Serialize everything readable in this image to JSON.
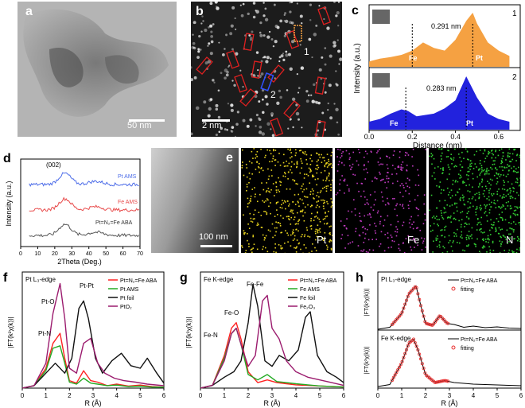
{
  "panels": {
    "a": {
      "label": "a",
      "scale_bar": "50 nm"
    },
    "b": {
      "label": "b",
      "scale_bar": "2 nm",
      "site1": "1",
      "site2": "2"
    },
    "c": {
      "label": "c",
      "ylabel": "Intensity (a.u.)",
      "xlabel": "Distance (nm)",
      "top": {
        "id": "1",
        "dist": "0.291 nm",
        "left_label": "Fe",
        "right_label": "Pt",
        "color": "#F5A142"
      },
      "bottom": {
        "id": "2",
        "dist": "0.283 nm",
        "left_label": "Fe",
        "right_label": "Pt",
        "color": "#2222DD"
      }
    },
    "d": {
      "label": "d",
      "ylabel": "Intensity (a.u.)",
      "xlabel": "2Theta (Deg.)",
      "peak_label": "(002)",
      "series_labels": [
        "Pt AMS",
        "Fe AMS",
        "Pt=N₂=Fe ABA"
      ]
    },
    "e": {
      "label": "e",
      "scale_bar": "100 nm",
      "maps": [
        "Pt",
        "Fe",
        "N"
      ],
      "map_colors": [
        "#E6D21E",
        "#C43CC4",
        "#33CC33"
      ]
    },
    "f": {
      "label": "f",
      "edge": "Pt L₃-edge",
      "ylabel": "|FT(k²χ(k))|",
      "xlabel": "R (Å)",
      "legend": [
        "Pt=N₂=Fe ABA",
        "Pt AMS",
        "Pt foil",
        "PtO₂"
      ],
      "annotations": [
        "Pt-Pt",
        "Pt-O",
        "Pt-N"
      ]
    },
    "g": {
      "label": "g",
      "edge": "Fe K-edge",
      "ylabel": "|FT(k³χ(k))|",
      "xlabel": "R (Å)",
      "legend": [
        "Pt=N₂=Fe ABA",
        "Fe AMS",
        "Fe foil",
        "Fe₂O₃"
      ],
      "annotations": [
        "Fe-Fe",
        "Fe-O",
        "Fe-N"
      ]
    },
    "h": {
      "label": "h",
      "xlabel": "R (Å)",
      "top": {
        "edge": "Pt L₃-edge",
        "ylabel": "|FT(k²χ(k))|",
        "legend": [
          "Pt=N₂=Fe ABA",
          "fitting"
        ]
      },
      "bottom": {
        "edge": "Fe K-edge",
        "ylabel": "|FT(k³χ(k))|",
        "legend": [
          "Pt=N₂=Fe ABA",
          "fitting"
        ]
      }
    }
  },
  "chart_data": [
    {
      "panel": "c",
      "type": "area",
      "series": [
        {
          "name": "1",
          "x": [
            0,
            0.05,
            0.1,
            0.15,
            0.2,
            0.25,
            0.3,
            0.35,
            0.4,
            0.45,
            0.48,
            0.5,
            0.55,
            0.6,
            0.65
          ],
          "y": [
            0.1,
            0.15,
            0.18,
            0.22,
            0.3,
            0.45,
            0.35,
            0.3,
            0.5,
            0.85,
            1.0,
            0.8,
            0.45,
            0.3,
            0.2
          ]
        },
        {
          "name": "2",
          "x": [
            0,
            0.05,
            0.1,
            0.15,
            0.18,
            0.22,
            0.3,
            0.35,
            0.4,
            0.45,
            0.5,
            0.55,
            0.6,
            0.65
          ],
          "y": [
            0.15,
            0.2,
            0.3,
            0.38,
            0.35,
            0.25,
            0.3,
            0.4,
            0.55,
            1.0,
            0.6,
            0.3,
            0.2,
            0.15
          ]
        }
      ],
      "xlim": [
        0,
        0.7
      ],
      "xticks": [
        0.0,
        0.2,
        0.4,
        0.6
      ]
    },
    {
      "panel": "d",
      "type": "line",
      "xlim": [
        0,
        70
      ],
      "xticks": [
        0,
        10,
        20,
        30,
        40,
        50,
        60,
        70
      ],
      "series": [
        {
          "name": "Pt AMS",
          "color": "#4B6BE8",
          "offset": 2.0
        },
        {
          "name": "Fe AMS",
          "color": "#E84B4B",
          "offset": 1.0
        },
        {
          "name": "Pt=N₂=Fe ABA",
          "color": "#555555",
          "offset": 0.0
        }
      ],
      "peak_x": 26
    },
    {
      "panel": "f",
      "type": "line",
      "xlim": [
        0,
        6
      ],
      "xticks": [
        0,
        1,
        2,
        3,
        4,
        5,
        6
      ],
      "series": [
        {
          "name": "Pt=N₂=Fe ABA",
          "color": "#FF2222",
          "x": [
            0,
            0.5,
            1.0,
            1.3,
            1.6,
            1.8,
            2.0,
            2.3,
            2.6,
            2.9,
            3.2,
            3.6,
            4.0,
            4.5,
            5.0,
            5.5,
            6.0
          ],
          "y": [
            0,
            0.05,
            0.4,
            0.9,
            1.1,
            0.6,
            0.15,
            0.1,
            0.35,
            0.15,
            0.12,
            0.05,
            0.08,
            0.04,
            0.06,
            0.03,
            0.02
          ]
        },
        {
          "name": "Pt AMS",
          "color": "#22AA22",
          "x": [
            0,
            0.5,
            1.0,
            1.3,
            1.6,
            1.8,
            2.0,
            2.3,
            2.6,
            2.9,
            3.2,
            3.6,
            4.0,
            4.5,
            5.0,
            5.5,
            6.0
          ],
          "y": [
            0,
            0.05,
            0.35,
            0.8,
            0.85,
            0.5,
            0.12,
            0.08,
            0.2,
            0.1,
            0.08,
            0.05,
            0.06,
            0.03,
            0.04,
            0.02,
            0.02
          ]
        },
        {
          "name": "Pt foil",
          "color": "#111111",
          "x": [
            0,
            0.5,
            1.0,
            1.4,
            1.8,
            2.1,
            2.4,
            2.6,
            2.8,
            3.1,
            3.4,
            3.8,
            4.2,
            4.6,
            5.0,
            5.3,
            5.7,
            6.0
          ],
          "y": [
            0,
            0.05,
            0.3,
            0.5,
            0.3,
            0.6,
            1.6,
            1.75,
            1.4,
            0.6,
            0.3,
            0.55,
            0.7,
            0.45,
            0.4,
            0.6,
            0.3,
            0.1
          ]
        },
        {
          "name": "PtO₂",
          "color": "#9B1B6E",
          "x": [
            0,
            0.5,
            1.0,
            1.3,
            1.6,
            1.8,
            2.0,
            2.3,
            2.6,
            2.9,
            3.2,
            3.5,
            3.9,
            4.3,
            4.8,
            5.3,
            6.0
          ],
          "y": [
            0,
            0.05,
            0.5,
            1.5,
            2.1,
            1.4,
            0.4,
            0.3,
            0.9,
            1.0,
            0.5,
            0.3,
            0.2,
            0.15,
            0.12,
            0.08,
            0.05
          ]
        }
      ]
    },
    {
      "panel": "g",
      "type": "line",
      "xlim": [
        0,
        6
      ],
      "xticks": [
        0,
        1,
        2,
        3,
        4,
        5,
        6
      ],
      "series": [
        {
          "name": "Pt=N₂=Fe ABA",
          "color": "#FF2222",
          "x": [
            0,
            0.5,
            1.0,
            1.3,
            1.5,
            1.7,
            2.0,
            2.4,
            2.8,
            3.2,
            3.6,
            4.0,
            4.5,
            5.0,
            5.5,
            6.0
          ],
          "y": [
            0,
            0.05,
            0.6,
            1.1,
            1.2,
            0.9,
            0.3,
            0.1,
            0.15,
            0.1,
            0.08,
            0.06,
            0.05,
            0.04,
            0.03,
            0.02
          ]
        },
        {
          "name": "Fe AMS",
          "color": "#22AA22",
          "x": [
            0,
            0.5,
            1.0,
            1.3,
            1.5,
            1.7,
            2.0,
            2.4,
            2.8,
            3.2,
            3.6,
            4.0,
            4.5,
            5.0,
            5.5,
            6.0
          ],
          "y": [
            0,
            0.05,
            0.55,
            1.0,
            1.1,
            0.8,
            0.25,
            0.15,
            0.25,
            0.12,
            0.1,
            0.08,
            0.06,
            0.04,
            0.03,
            0.02
          ]
        },
        {
          "name": "Fe foil",
          "color": "#111111",
          "x": [
            0,
            0.5,
            1.0,
            1.4,
            1.7,
            2.0,
            2.2,
            2.4,
            2.7,
            3.0,
            3.3,
            3.7,
            4.1,
            4.4,
            4.6,
            4.9,
            5.3,
            5.7,
            6.0
          ],
          "y": [
            0,
            0.05,
            0.2,
            0.3,
            0.5,
            1.2,
            1.9,
            1.5,
            0.5,
            0.4,
            0.6,
            0.5,
            0.7,
            1.3,
            1.4,
            0.6,
            0.3,
            0.2,
            0.1
          ]
        },
        {
          "name": "Fe₂O₃",
          "color": "#9B1B6E",
          "x": [
            0,
            0.5,
            1.0,
            1.3,
            1.5,
            1.7,
            2.0,
            2.3,
            2.6,
            2.8,
            3.0,
            3.3,
            3.6,
            4.0,
            4.5,
            5.0,
            5.5,
            6.0
          ],
          "y": [
            0,
            0.05,
            0.5,
            1.0,
            1.1,
            0.8,
            0.4,
            0.6,
            1.6,
            1.7,
            1.1,
            0.9,
            0.5,
            0.3,
            0.2,
            0.15,
            0.1,
            0.05
          ]
        }
      ]
    },
    {
      "panel": "h",
      "type": "line",
      "xlim": [
        0,
        6
      ],
      "xticks": [
        0,
        1,
        2,
        3,
        4,
        5,
        6
      ],
      "series": [
        {
          "name": "Pt L₃-edge data",
          "x": [
            0,
            0.5,
            1.0,
            1.3,
            1.6,
            1.8,
            2.0,
            2.3,
            2.6,
            2.9,
            3.2,
            3.6,
            4.0,
            4.5,
            5.0,
            5.5,
            6.0
          ],
          "y": [
            0,
            0.05,
            0.4,
            0.9,
            1.1,
            0.6,
            0.15,
            0.1,
            0.35,
            0.15,
            0.12,
            0.05,
            0.08,
            0.04,
            0.06,
            0.03,
            0.02
          ]
        },
        {
          "name": "Fe K-edge data",
          "x": [
            0,
            0.5,
            1.0,
            1.3,
            1.5,
            1.7,
            2.0,
            2.4,
            2.8,
            3.2,
            3.6,
            4.0,
            4.5,
            5.0,
            5.5,
            6.0
          ],
          "y": [
            0,
            0.05,
            0.6,
            1.1,
            1.2,
            0.9,
            0.3,
            0.1,
            0.15,
            0.1,
            0.08,
            0.06,
            0.05,
            0.04,
            0.03,
            0.02
          ]
        }
      ]
    }
  ]
}
